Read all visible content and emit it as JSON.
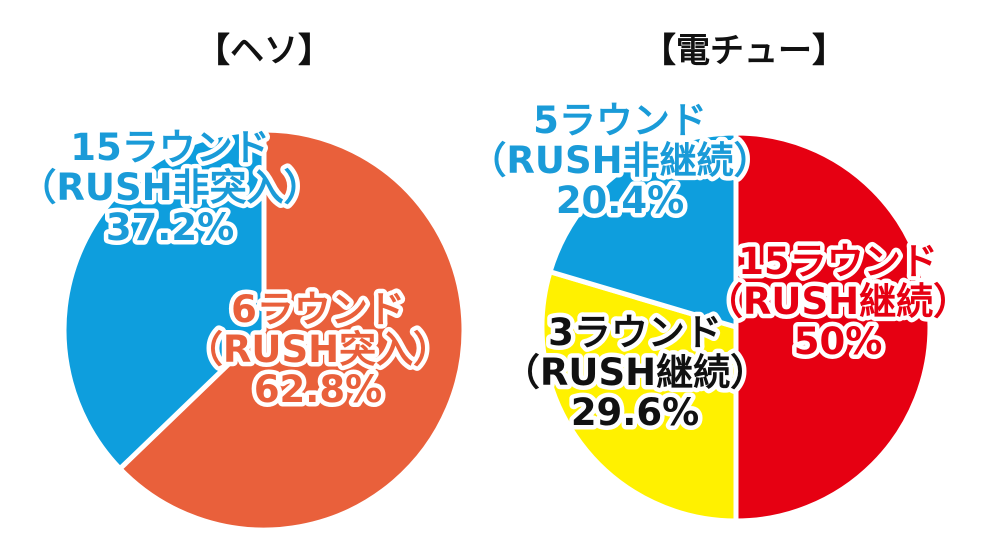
{
  "chart_data": [
    {
      "type": "pie",
      "title": "【ヘソ】",
      "slices": [
        {
          "lines": [
            "6ラウンド",
            "（RUSH突入）",
            "62.8%"
          ],
          "value": 62.8,
          "color": "#E9603B",
          "text_color": "#E9603B"
        },
        {
          "lines": [
            "15ラウンド",
            "（RUSH非突入）",
            "37.2%"
          ],
          "value": 37.2,
          "color": "#0E9EDD",
          "text_color": "#1A9BD8"
        }
      ]
    },
    {
      "type": "pie",
      "title": "【電チュー】",
      "slices": [
        {
          "lines": [
            "15ラウンド",
            "（RUSH継続）",
            "50%"
          ],
          "value": 50,
          "color": "#E60012",
          "text_color": "#E60012"
        },
        {
          "lines": [
            "3ラウンド",
            "（RUSH継続）",
            "29.6%"
          ],
          "value": 29.6,
          "color": "#FFF100",
          "text_color": "#111111"
        },
        {
          "lines": [
            "5ラウンド",
            "（RUSH非継続）",
            "20.4%"
          ],
          "value": 20.4,
          "color": "#0E9EDD",
          "text_color": "#1A9BD8"
        }
      ]
    }
  ]
}
